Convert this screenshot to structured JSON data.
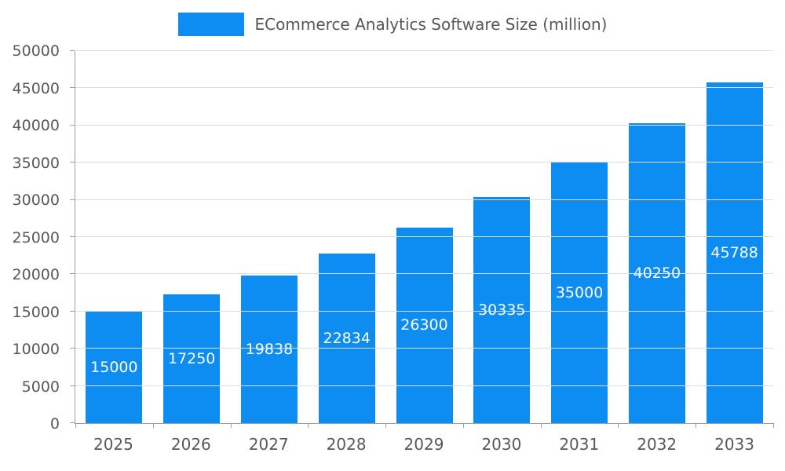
{
  "chart_data": {
    "type": "bar",
    "title": "ECommerce Analytics Software Size (million)",
    "categories": [
      "2025",
      "2026",
      "2027",
      "2028",
      "2029",
      "2030",
      "2031",
      "2032",
      "2033"
    ],
    "values": [
      15000,
      17250,
      19838,
      22834,
      26300,
      30335,
      35000,
      40250,
      45788
    ],
    "xlabel": "",
    "ylabel": "",
    "ylim": [
      0,
      50000
    ],
    "y_ticks": [
      0,
      5000,
      10000,
      15000,
      20000,
      25000,
      30000,
      35000,
      40000,
      45000,
      50000
    ],
    "grid": true,
    "legend_position": "top",
    "bar_color": "#0d8df2",
    "value_label_color": "#ffffff",
    "axis_text_color": "#595959"
  }
}
